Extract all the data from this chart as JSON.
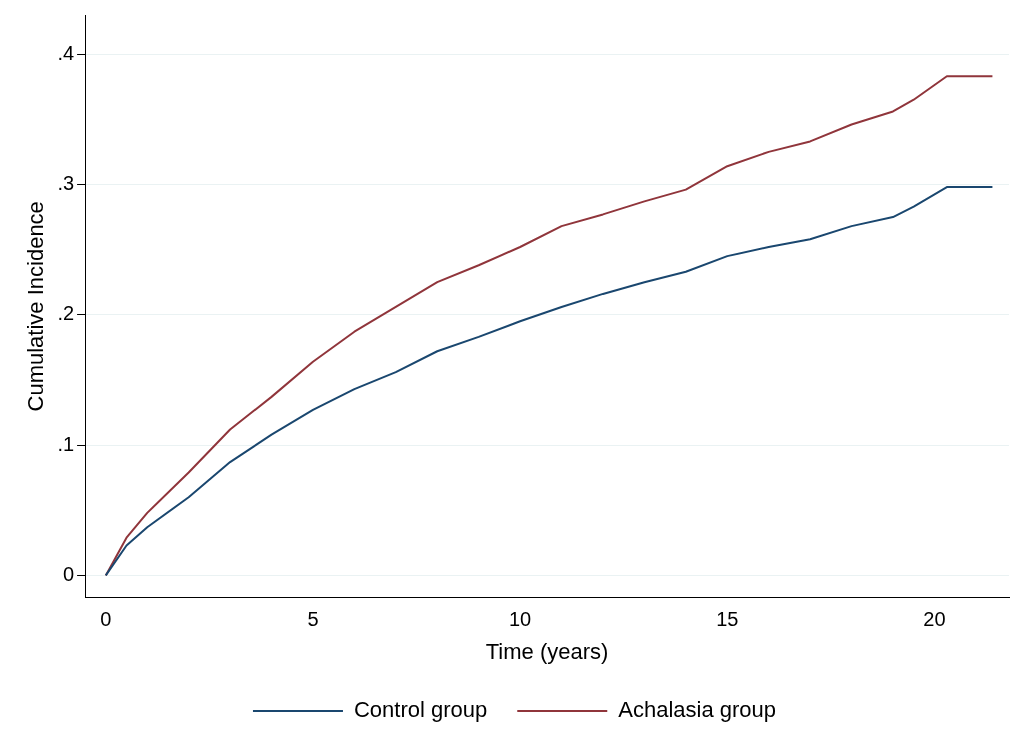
{
  "chart_data": {
    "type": "line",
    "xlabel": "Time (years)",
    "ylabel": "Cumulative Incidence",
    "xlim": [
      -0.5,
      21.8
    ],
    "ylim": [
      -0.017,
      0.43
    ],
    "xticks": [
      0,
      5,
      10,
      15,
      20
    ],
    "yticks": [
      0,
      {
        "value": 0.1,
        "label": ".1"
      },
      {
        "value": 0.2,
        "label": ".2"
      },
      {
        "value": 0.3,
        "label": ".3"
      },
      {
        "value": 0.4,
        "label": ".4"
      }
    ],
    "grid": "y",
    "legend": "bottom",
    "marker": "none",
    "line_style": "solid",
    "series": [
      {
        "name": "Control group",
        "color": "#1a476f",
        "x": [
          0,
          0.5,
          1,
          2,
          3,
          4,
          5,
          6,
          7,
          8,
          9,
          10,
          11,
          12,
          13,
          14,
          15,
          16,
          17,
          18,
          19,
          19.5,
          20.3,
          21.4
        ],
        "values": [
          0,
          0.023,
          0.037,
          0.06,
          0.087,
          0.108,
          0.127,
          0.143,
          0.156,
          0.172,
          0.183,
          0.195,
          0.206,
          0.216,
          0.225,
          0.233,
          0.245,
          0.252,
          0.258,
          0.268,
          0.275,
          0.283,
          0.298,
          0.298
        ]
      },
      {
        "name": "Achalasia group",
        "color": "#90353b",
        "x": [
          0,
          0.5,
          1,
          2,
          3,
          4,
          5,
          6,
          7,
          8,
          9,
          10,
          11,
          12,
          13,
          14,
          15,
          16,
          17,
          18,
          19,
          19.5,
          20.3,
          21.4
        ],
        "values": [
          0,
          0.029,
          0.048,
          0.079,
          0.112,
          0.137,
          0.164,
          0.187,
          0.206,
          0.225,
          0.238,
          0.252,
          0.268,
          0.277,
          0.287,
          0.296,
          0.314,
          0.325,
          0.333,
          0.346,
          0.356,
          0.365,
          0.383,
          0.383
        ]
      }
    ]
  }
}
